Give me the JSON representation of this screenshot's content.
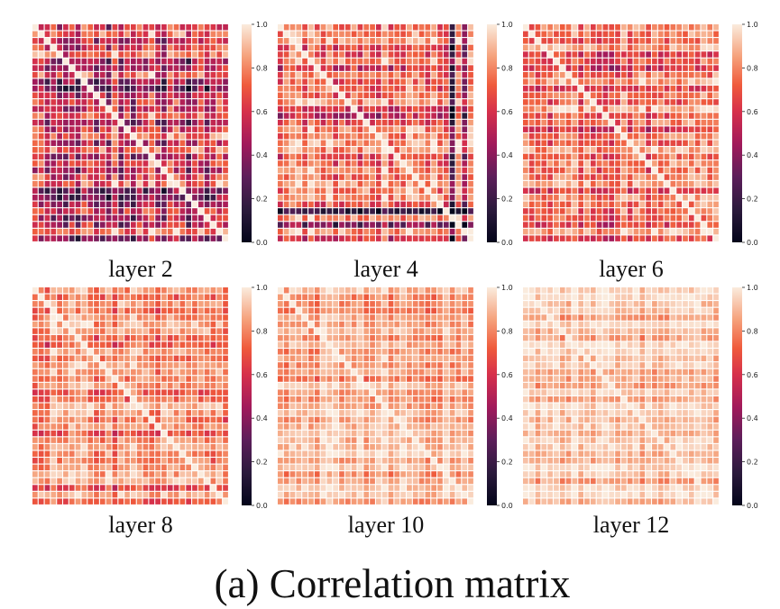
{
  "figure_caption": "(a) Correlation matrix",
  "chart_data": [
    {
      "type": "heatmap",
      "title": "layer 2",
      "matrix_size": 32,
      "vmin": 0.0,
      "vmax": 1.0,
      "diagonal": 1.0,
      "approx_offdiag_mean": 0.55,
      "colorbar_ticks": [
        "0.0",
        "0.2",
        "0.4",
        "0.6",
        "0.8",
        "1.0"
      ]
    },
    {
      "type": "heatmap",
      "title": "layer 4",
      "matrix_size": 32,
      "vmin": 0.0,
      "vmax": 1.0,
      "diagonal": 1.0,
      "approx_offdiag_mean": 0.7,
      "colorbar_ticks": [
        "0.0",
        "0.2",
        "0.4",
        "0.6",
        "0.8",
        "1.0"
      ]
    },
    {
      "type": "heatmap",
      "title": "layer 6",
      "matrix_size": 32,
      "vmin": 0.0,
      "vmax": 1.0,
      "diagonal": 1.0,
      "approx_offdiag_mean": 0.72,
      "colorbar_ticks": [
        "0.0",
        "0.2",
        "0.4",
        "0.6",
        "0.8",
        "1.0"
      ]
    },
    {
      "type": "heatmap",
      "title": "layer 8",
      "matrix_size": 32,
      "vmin": 0.0,
      "vmax": 1.0,
      "diagonal": 1.0,
      "approx_offdiag_mean": 0.78,
      "colorbar_ticks": [
        "0.0",
        "0.2",
        "0.4",
        "0.6",
        "0.8",
        "1.0"
      ]
    },
    {
      "type": "heatmap",
      "title": "layer 10",
      "matrix_size": 32,
      "vmin": 0.0,
      "vmax": 1.0,
      "diagonal": 1.0,
      "approx_offdiag_mean": 0.87,
      "colorbar_ticks": [
        "0.0",
        "0.2",
        "0.4",
        "0.6",
        "0.8",
        "1.0"
      ]
    },
    {
      "type": "heatmap",
      "title": "layer 12",
      "matrix_size": 32,
      "vmin": 0.0,
      "vmax": 1.0,
      "diagonal": 1.0,
      "approx_offdiag_mean": 0.9,
      "colorbar_ticks": [
        "0.0",
        "0.2",
        "0.4",
        "0.6",
        "0.8",
        "1.0"
      ]
    }
  ]
}
